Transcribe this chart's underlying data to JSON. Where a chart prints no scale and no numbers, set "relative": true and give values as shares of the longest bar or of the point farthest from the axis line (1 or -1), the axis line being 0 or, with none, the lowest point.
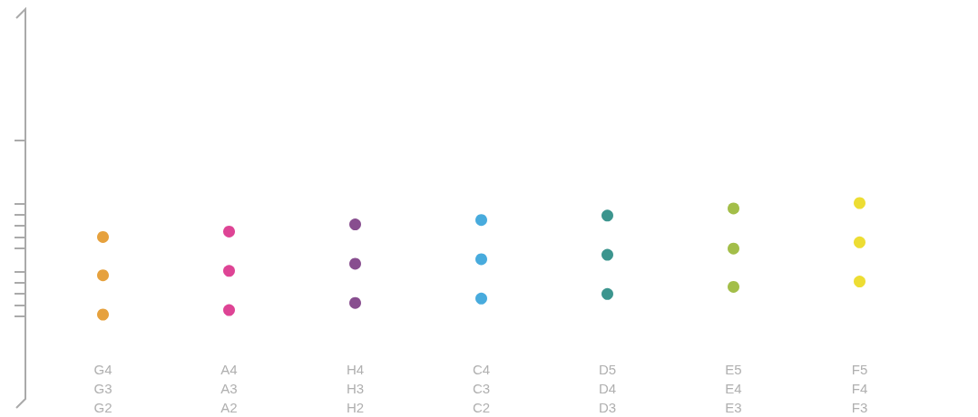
{
  "chart_data": {
    "type": "scatter",
    "relative": true,
    "marker": "circle",
    "grid": false,
    "categories": [
      "G4\nG3\nG2",
      "A4\nA3\nA2",
      "H4\nH3\nH2",
      "C4\nC3\nC2",
      "D5\nD4\nD3",
      "E5\nE4\nE3",
      "F5\nF4\nF3"
    ],
    "series": [
      {
        "values": [
          0.696,
          0.744,
          0.808,
          0.848,
          0.888,
          0.952,
          1
        ],
        "colors": [
          "#e08a0c",
          "#d6157a",
          "#6a2273",
          "#1a96d4",
          "#0b7a72",
          "#8cae1c",
          "#e8d400"
        ]
      },
      {
        "values": [
          0.352,
          0.392,
          0.456,
          0.496,
          0.536,
          0.592,
          0.648
        ],
        "colors": [
          "#e08a0c",
          "#d6157a",
          "#6a2273",
          "#1a96d4",
          "#0b7a72",
          "#8cae1c",
          "#e8d400"
        ]
      },
      {
        "values": [
          0,
          0.04,
          0.104,
          0.144,
          0.184,
          0.248,
          0.296
        ],
        "colors": [
          "#e08a0c",
          "#d6157a",
          "#6a2273",
          "#1a96d4",
          "#0b7a72",
          "#8cae1c",
          "#e8d400"
        ]
      }
    ]
  }
}
